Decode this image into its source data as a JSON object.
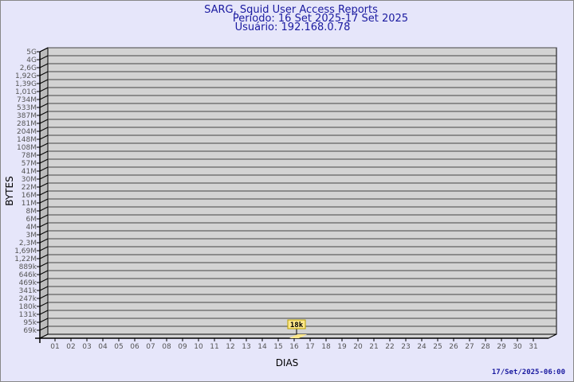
{
  "chart_data": {
    "type": "bar",
    "title": "SARG, Squid User Access Reports",
    "subtitle": [
      "Período: 16 Set 2025-17 Set 2025",
      "Usuário: 192.168.0.78"
    ],
    "xlabel": "DIAS",
    "ylabel": "BYTES",
    "y_scale": "log",
    "y_tick_labels": [
      "69k",
      "95k",
      "131k",
      "180k",
      "247k",
      "341k",
      "469k",
      "646k",
      "889k",
      "1,22M",
      "1,69M",
      "2,3M",
      "3M",
      "4M",
      "6M",
      "8M",
      "11M",
      "16M",
      "22M",
      "30M",
      "41M",
      "57M",
      "78M",
      "108M",
      "148M",
      "204M",
      "281M",
      "387M",
      "533M",
      "734M",
      "1,01G",
      "1,39G",
      "1,92G",
      "2,6G",
      "4G",
      "5G"
    ],
    "categories": [
      "01",
      "02",
      "03",
      "04",
      "05",
      "06",
      "07",
      "08",
      "09",
      "10",
      "11",
      "12",
      "13",
      "14",
      "15",
      "16",
      "17",
      "18",
      "19",
      "20",
      "21",
      "22",
      "23",
      "24",
      "25",
      "26",
      "27",
      "28",
      "29",
      "30",
      "31"
    ],
    "bars": [
      {
        "day": "16",
        "value": 18000,
        "label": "18k"
      }
    ],
    "grid": true,
    "colors": {
      "background": "#e6e6fa",
      "plot": "#d3d3d3",
      "side": "#bcbcbc",
      "bar": "#ffe88a",
      "title": "#1a1aa0"
    }
  },
  "footer": {
    "timestamp": "17/Set/2025-06:00"
  }
}
